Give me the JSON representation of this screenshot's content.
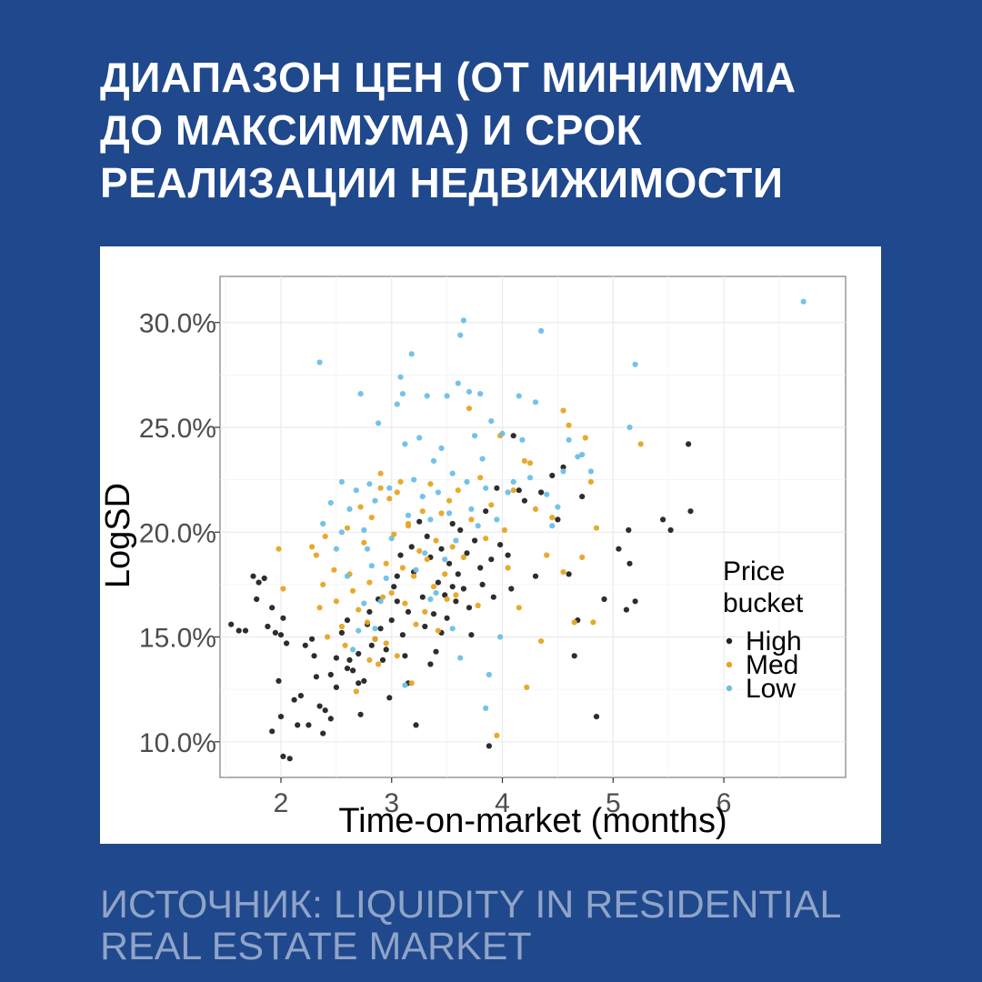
{
  "header": {
    "title_lines": [
      "ДИАПАЗОН ЦЕН (ОТ МИНИМУМА",
      "ДО МАКСИМУМА) И СРОК",
      "РЕАЛИЗАЦИИ НЕДВИЖИМОСТИ"
    ]
  },
  "footer": {
    "source_lines": [
      "ИСТОЧНИК: LIQUIDITY IN RESIDENTIAL",
      "REAL ESTATE MARKET"
    ]
  },
  "colors": {
    "background": "#20488c",
    "high": "#222222",
    "med": "#e6a522",
    "low": "#6cbfe8"
  },
  "chart_data": {
    "type": "scatter",
    "xlabel": "Time-on-market (months)",
    "ylabel": "LogSD",
    "xlim": [
      1.45,
      7.1
    ],
    "ylim": [
      8.3,
      32.2
    ],
    "x_ticks": [
      2,
      3,
      4,
      5,
      6
    ],
    "x_tick_labels": [
      "2",
      "3",
      "4",
      "5",
      "6"
    ],
    "y_ticks": [
      10,
      15,
      20,
      25,
      30
    ],
    "y_tick_labels": [
      "10.0%",
      "15.0%",
      "20.0%",
      "25.0%",
      "30.0%"
    ],
    "grid": true,
    "legend": {
      "title_lines": [
        "Price",
        "bucket"
      ],
      "position": "right-inside"
    },
    "series": [
      {
        "name": "High",
        "color": "#222222",
        "points": [
          [
            1.55,
            15.6
          ],
          [
            1.62,
            15.3
          ],
          [
            1.68,
            15.3
          ],
          [
            1.75,
            17.9
          ],
          [
            1.8,
            17.6
          ],
          [
            1.85,
            17.8
          ],
          [
            1.78,
            16.8
          ],
          [
            1.88,
            15.5
          ],
          [
            1.92,
            16.4
          ],
          [
            1.95,
            15.2
          ],
          [
            2.0,
            15.1
          ],
          [
            2.02,
            15.9
          ],
          [
            2.05,
            14.7
          ],
          [
            1.98,
            12.9
          ],
          [
            1.92,
            10.5
          ],
          [
            2.0,
            11.2
          ],
          [
            2.02,
            9.3
          ],
          [
            2.08,
            9.2
          ],
          [
            2.12,
            12.0
          ],
          [
            2.15,
            10.8
          ],
          [
            2.18,
            12.2
          ],
          [
            2.22,
            14.6
          ],
          [
            2.25,
            10.8
          ],
          [
            2.28,
            14.9
          ],
          [
            2.32,
            13.1
          ],
          [
            2.35,
            11.7
          ],
          [
            2.38,
            10.4
          ],
          [
            2.4,
            11.5
          ],
          [
            2.45,
            13.2
          ],
          [
            2.5,
            14.0
          ],
          [
            2.55,
            15.2
          ],
          [
            2.6,
            15.8
          ],
          [
            2.62,
            13.9
          ],
          [
            2.65,
            13.4
          ],
          [
            2.7,
            12.8
          ],
          [
            2.72,
            11.3
          ],
          [
            2.75,
            12.9
          ],
          [
            2.78,
            15.6
          ],
          [
            2.8,
            16.2
          ],
          [
            2.82,
            14.6
          ],
          [
            2.88,
            16.8
          ],
          [
            2.9,
            15.4
          ],
          [
            2.92,
            13.9
          ],
          [
            2.95,
            14.4
          ],
          [
            2.98,
            12.1
          ],
          [
            3.0,
            15.8
          ],
          [
            3.02,
            17.4
          ],
          [
            3.05,
            16.7
          ],
          [
            3.08,
            18.9
          ],
          [
            3.1,
            15.1
          ],
          [
            3.12,
            14.1
          ],
          [
            3.15,
            16.2
          ],
          [
            3.18,
            19.3
          ],
          [
            3.2,
            18.1
          ],
          [
            3.22,
            10.8
          ],
          [
            3.25,
            20.5
          ],
          [
            3.28,
            16.9
          ],
          [
            3.3,
            15.5
          ],
          [
            3.32,
            19.8
          ],
          [
            3.35,
            18.8
          ],
          [
            3.38,
            16.1
          ],
          [
            3.4,
            14.3
          ],
          [
            3.42,
            17.6
          ],
          [
            3.45,
            19.2
          ],
          [
            3.48,
            17.0
          ],
          [
            3.5,
            15.9
          ],
          [
            3.52,
            18.5
          ],
          [
            3.55,
            20.4
          ],
          [
            3.58,
            16.7
          ],
          [
            3.6,
            18.0
          ],
          [
            3.62,
            20.1
          ],
          [
            3.65,
            17.3
          ],
          [
            3.68,
            19.0
          ],
          [
            3.7,
            16.4
          ],
          [
            3.72,
            15.1
          ],
          [
            3.75,
            19.6
          ],
          [
            3.8,
            18.3
          ],
          [
            3.82,
            17.5
          ],
          [
            3.85,
            21.0
          ],
          [
            3.88,
            9.8
          ],
          [
            3.9,
            18.7
          ],
          [
            3.92,
            16.9
          ],
          [
            3.95,
            22.1
          ],
          [
            3.98,
            19.4
          ],
          [
            4.05,
            18.9
          ],
          [
            4.08,
            17.3
          ],
          [
            4.1,
            24.6
          ],
          [
            4.15,
            22.0
          ],
          [
            4.2,
            21.5
          ],
          [
            4.3,
            17.9
          ],
          [
            4.35,
            21.9
          ],
          [
            4.45,
            22.7
          ],
          [
            4.5,
            20.6
          ],
          [
            4.55,
            23.1
          ],
          [
            4.6,
            18.0
          ],
          [
            4.65,
            14.1
          ],
          [
            4.68,
            15.8
          ],
          [
            4.72,
            21.7
          ],
          [
            4.85,
            11.2
          ],
          [
            4.92,
            16.8
          ],
          [
            5.05,
            19.2
          ],
          [
            5.12,
            16.3
          ],
          [
            5.15,
            18.5
          ],
          [
            5.14,
            20.1
          ],
          [
            5.2,
            16.7
          ],
          [
            5.45,
            20.6
          ],
          [
            5.52,
            20.1
          ],
          [
            5.68,
            24.2
          ],
          [
            5.7,
            21.0
          ],
          [
            2.6,
            13.5
          ],
          [
            2.85,
            14.9
          ],
          [
            3.05,
            17.9
          ],
          [
            3.15,
            12.8
          ],
          [
            2.7,
            14.2
          ],
          [
            2.5,
            12.6
          ],
          [
            2.45,
            11.1
          ],
          [
            2.3,
            14.1
          ],
          [
            3.35,
            13.7
          ],
          [
            3.45,
            15.2
          ],
          [
            3.55,
            17.4
          ]
        ]
      },
      {
        "name": "Med",
        "color": "#e6a522",
        "points": [
          [
            1.98,
            19.2
          ],
          [
            2.02,
            17.3
          ],
          [
            2.28,
            19.3
          ],
          [
            2.32,
            18.9
          ],
          [
            2.35,
            16.4
          ],
          [
            2.38,
            17.5
          ],
          [
            2.4,
            19.8
          ],
          [
            2.42,
            15.0
          ],
          [
            2.48,
            18.2
          ],
          [
            2.5,
            16.7
          ],
          [
            2.55,
            15.5
          ],
          [
            2.58,
            14.6
          ],
          [
            2.6,
            20.2
          ],
          [
            2.62,
            18.0
          ],
          [
            2.65,
            17.2
          ],
          [
            2.68,
            12.4
          ],
          [
            2.7,
            16.3
          ],
          [
            2.72,
            21.2
          ],
          [
            2.75,
            19.5
          ],
          [
            2.78,
            15.7
          ],
          [
            2.8,
            17.6
          ],
          [
            2.82,
            20.7
          ],
          [
            2.85,
            14.9
          ],
          [
            2.88,
            13.7
          ],
          [
            2.9,
            22.1
          ],
          [
            2.92,
            16.9
          ],
          [
            2.95,
            18.5
          ],
          [
            2.98,
            21.6
          ],
          [
            3.0,
            17.1
          ],
          [
            3.02,
            19.9
          ],
          [
            3.05,
            14.1
          ],
          [
            3.08,
            22.4
          ],
          [
            3.1,
            18.3
          ],
          [
            3.12,
            16.6
          ],
          [
            3.15,
            20.3
          ],
          [
            3.18,
            12.8
          ],
          [
            3.2,
            17.9
          ],
          [
            3.22,
            15.6
          ],
          [
            3.25,
            19.1
          ],
          [
            3.28,
            21.0
          ],
          [
            3.3,
            16.2
          ],
          [
            3.32,
            18.7
          ],
          [
            3.35,
            22.3
          ],
          [
            3.38,
            17.4
          ],
          [
            3.4,
            19.6
          ],
          [
            3.42,
            15.3
          ],
          [
            3.45,
            20.9
          ],
          [
            3.48,
            18.0
          ],
          [
            3.5,
            16.8
          ],
          [
            3.52,
            21.5
          ],
          [
            3.55,
            19.3
          ],
          [
            3.58,
            17.0
          ],
          [
            3.6,
            22.0
          ],
          [
            3.65,
            18.8
          ],
          [
            3.7,
            25.9
          ],
          [
            3.72,
            20.6
          ],
          [
            3.78,
            16.5
          ],
          [
            3.8,
            22.6
          ],
          [
            3.85,
            19.7
          ],
          [
            3.9,
            21.3
          ],
          [
            3.95,
            10.3
          ],
          [
            3.98,
            24.6
          ],
          [
            4.02,
            20.1
          ],
          [
            4.05,
            18.3
          ],
          [
            4.1,
            22.0
          ],
          [
            4.15,
            16.4
          ],
          [
            4.2,
            23.4
          ],
          [
            4.22,
            12.6
          ],
          [
            4.25,
            23.3
          ],
          [
            4.3,
            21.1
          ],
          [
            4.35,
            14.8
          ],
          [
            4.4,
            18.9
          ],
          [
            4.45,
            20.7
          ],
          [
            4.55,
            18.1
          ],
          [
            4.6,
            25.1
          ],
          [
            4.55,
            25.8
          ],
          [
            4.65,
            15.7
          ],
          [
            4.72,
            18.8
          ],
          [
            4.75,
            24.5
          ],
          [
            4.8,
            22.4
          ],
          [
            4.82,
            15.7
          ],
          [
            4.85,
            20.2
          ],
          [
            5.25,
            24.2
          ],
          [
            2.9,
            22.8
          ],
          [
            3.05,
            21.9
          ],
          [
            3.15,
            20.4
          ],
          [
            2.95,
            14.7
          ],
          [
            2.8,
            13.9
          ]
        ]
      },
      {
        "name": "Low",
        "color": "#6cbfe8",
        "points": [
          [
            2.35,
            28.1
          ],
          [
            2.38,
            20.4
          ],
          [
            2.45,
            21.4
          ],
          [
            2.5,
            19.2
          ],
          [
            2.55,
            22.4
          ],
          [
            2.6,
            17.9
          ],
          [
            2.62,
            21.1
          ],
          [
            2.68,
            22.0
          ],
          [
            2.7,
            15.3
          ],
          [
            2.72,
            26.6
          ],
          [
            2.75,
            20.1
          ],
          [
            2.78,
            19.2
          ],
          [
            2.8,
            22.3
          ],
          [
            2.82,
            18.4
          ],
          [
            2.85,
            21.5
          ],
          [
            2.88,
            25.2
          ],
          [
            2.9,
            16.7
          ],
          [
            2.95,
            17.8
          ],
          [
            2.98,
            22.1
          ],
          [
            3.0,
            19.7
          ],
          [
            3.05,
            26.1
          ],
          [
            3.08,
            27.4
          ],
          [
            3.1,
            26.6
          ],
          [
            3.12,
            24.2
          ],
          [
            3.15,
            20.8
          ],
          [
            3.18,
            28.5
          ],
          [
            3.2,
            22.5
          ],
          [
            3.22,
            18.2
          ],
          [
            3.25,
            24.5
          ],
          [
            3.28,
            21.7
          ],
          [
            3.3,
            19.0
          ],
          [
            3.32,
            26.5
          ],
          [
            3.35,
            20.6
          ],
          [
            3.38,
            23.4
          ],
          [
            3.4,
            17.1
          ],
          [
            3.42,
            21.9
          ],
          [
            3.45,
            24.0
          ],
          [
            3.48,
            18.7
          ],
          [
            3.5,
            26.5
          ],
          [
            3.52,
            20.9
          ],
          [
            3.55,
            22.8
          ],
          [
            3.58,
            19.6
          ],
          [
            3.6,
            27.1
          ],
          [
            3.62,
            29.4
          ],
          [
            3.65,
            30.1
          ],
          [
            3.68,
            22.4
          ],
          [
            3.7,
            26.7
          ],
          [
            3.72,
            21.1
          ],
          [
            3.75,
            24.6
          ],
          [
            3.78,
            20.3
          ],
          [
            3.8,
            26.6
          ],
          [
            3.82,
            23.5
          ],
          [
            3.85,
            22.1
          ],
          [
            3.9,
            25.3
          ],
          [
            3.95,
            20.6
          ],
          [
            4.0,
            24.7
          ],
          [
            4.05,
            21.9
          ],
          [
            4.1,
            22.4
          ],
          [
            4.15,
            26.5
          ],
          [
            4.18,
            24.4
          ],
          [
            4.25,
            22.6
          ],
          [
            4.3,
            26.2
          ],
          [
            4.35,
            29.6
          ],
          [
            4.4,
            21.8
          ],
          [
            4.45,
            20.3
          ],
          [
            4.5,
            21.2
          ],
          [
            4.55,
            22.9
          ],
          [
            4.6,
            24.4
          ],
          [
            4.68,
            23.6
          ],
          [
            4.72,
            23.7
          ],
          [
            4.8,
            22.9
          ],
          [
            5.15,
            25.0
          ],
          [
            5.2,
            28.0
          ],
          [
            6.72,
            31.0
          ],
          [
            2.55,
            20.0
          ],
          [
            2.65,
            14.4
          ],
          [
            2.75,
            16.6
          ],
          [
            2.85,
            15.4
          ],
          [
            3.12,
            12.7
          ],
          [
            3.35,
            16.8
          ],
          [
            3.62,
            14.0
          ],
          [
            3.55,
            15.4
          ],
          [
            3.85,
            11.6
          ],
          [
            3.88,
            13.2
          ],
          [
            3.98,
            15.0
          ]
        ]
      }
    ]
  }
}
